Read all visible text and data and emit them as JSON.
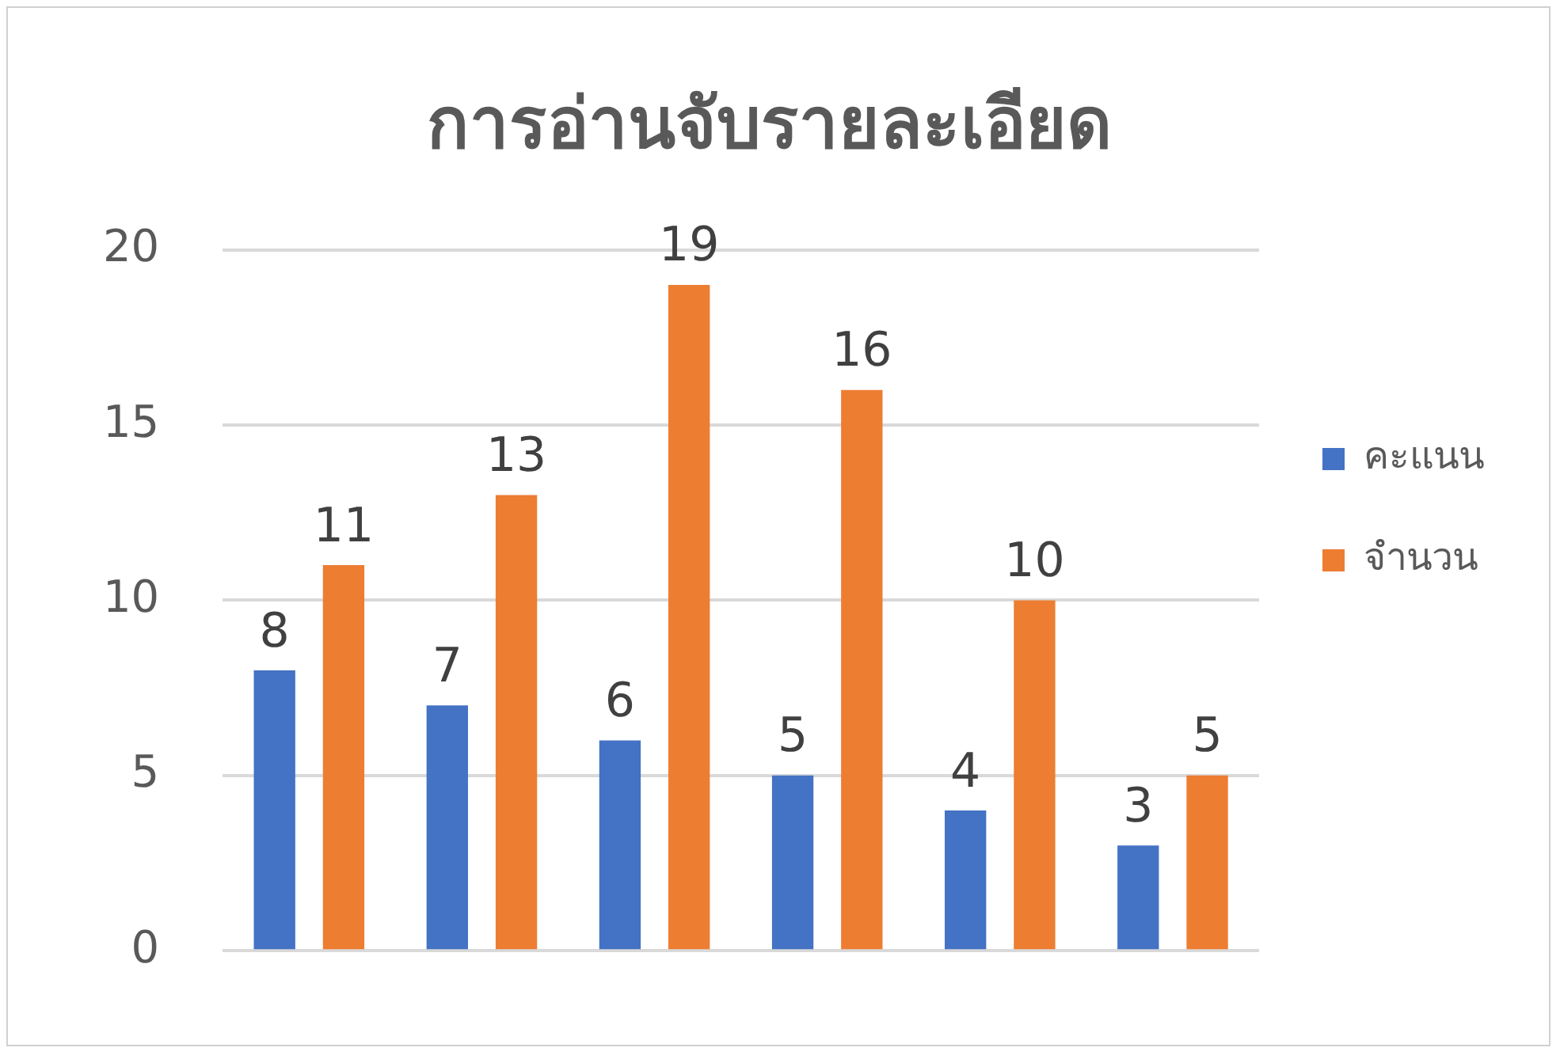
{
  "chart_data": {
    "type": "bar",
    "title": "การอ่านจับรายละเอียด",
    "categories": [
      null,
      null,
      null,
      null,
      null,
      null
    ],
    "series": [
      {
        "name": "คะแนน",
        "color": "#4472c4",
        "values": [
          8,
          7,
          6,
          5,
          4,
          3
        ]
      },
      {
        "name": "จำนวน",
        "color": "#ed7d31",
        "values": [
          11,
          13,
          19,
          16,
          10,
          5
        ]
      }
    ],
    "ylim": [
      0,
      20
    ],
    "yticks": [
      0,
      5,
      10,
      15,
      20
    ],
    "grid": "y",
    "legend": "right",
    "data_labels": true
  }
}
